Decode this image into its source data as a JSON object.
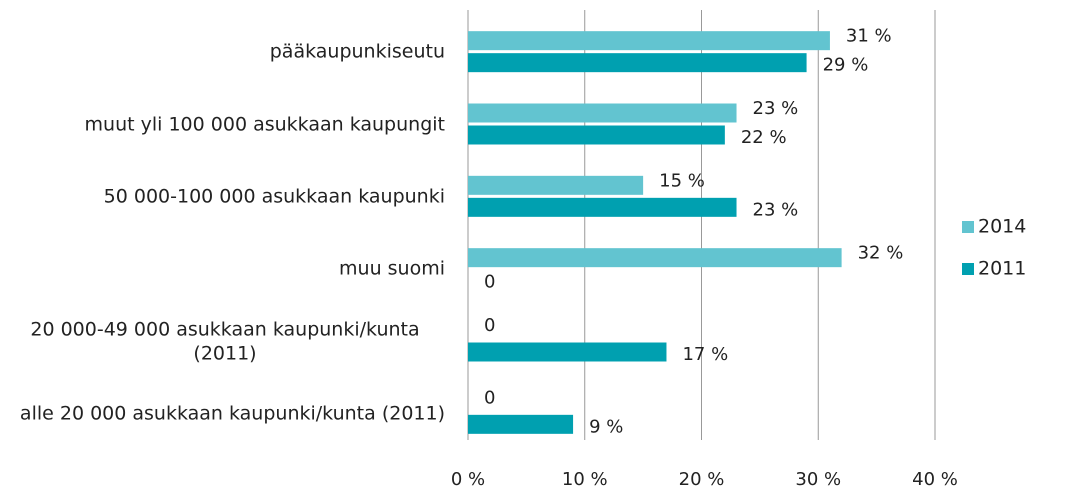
{
  "chart_data": {
    "type": "bar",
    "orientation": "horizontal",
    "categories": [
      "pääkaupunkiseutu",
      "muut yli 100 000 asukkaan kaupungit",
      "50 000-100 000 asukkaan kaupunki",
      "muu suomi",
      "20 000-49 000 asukkaan kaupunki/kunta (2011)",
      "alle 20 000 asukkaan kaupunki/kunta (2011)"
    ],
    "series": [
      {
        "name": "2014",
        "color": "#62c4d0",
        "values": [
          31,
          23,
          15,
          32,
          0,
          0
        ],
        "value_labels": [
          "31 %",
          "23 %",
          "15 %",
          "32 %",
          "0",
          "0"
        ]
      },
      {
        "name": "2011",
        "color": "#00a0b0",
        "values": [
          29,
          22,
          23,
          0,
          17,
          9
        ],
        "value_labels": [
          "29 %",
          "22 %",
          "23 %",
          "0",
          "17 %",
          "9 %"
        ]
      }
    ],
    "xlim": [
      0,
      40
    ],
    "xticks": [
      {
        "value": 0,
        "label": "0 %"
      },
      {
        "value": 10,
        "label": "10 %"
      },
      {
        "value": 20,
        "label": "20 %"
      },
      {
        "value": 30,
        "label": "30 %"
      },
      {
        "value": 40,
        "label": "40 %"
      }
    ],
    "grid": true,
    "legend": "right"
  }
}
